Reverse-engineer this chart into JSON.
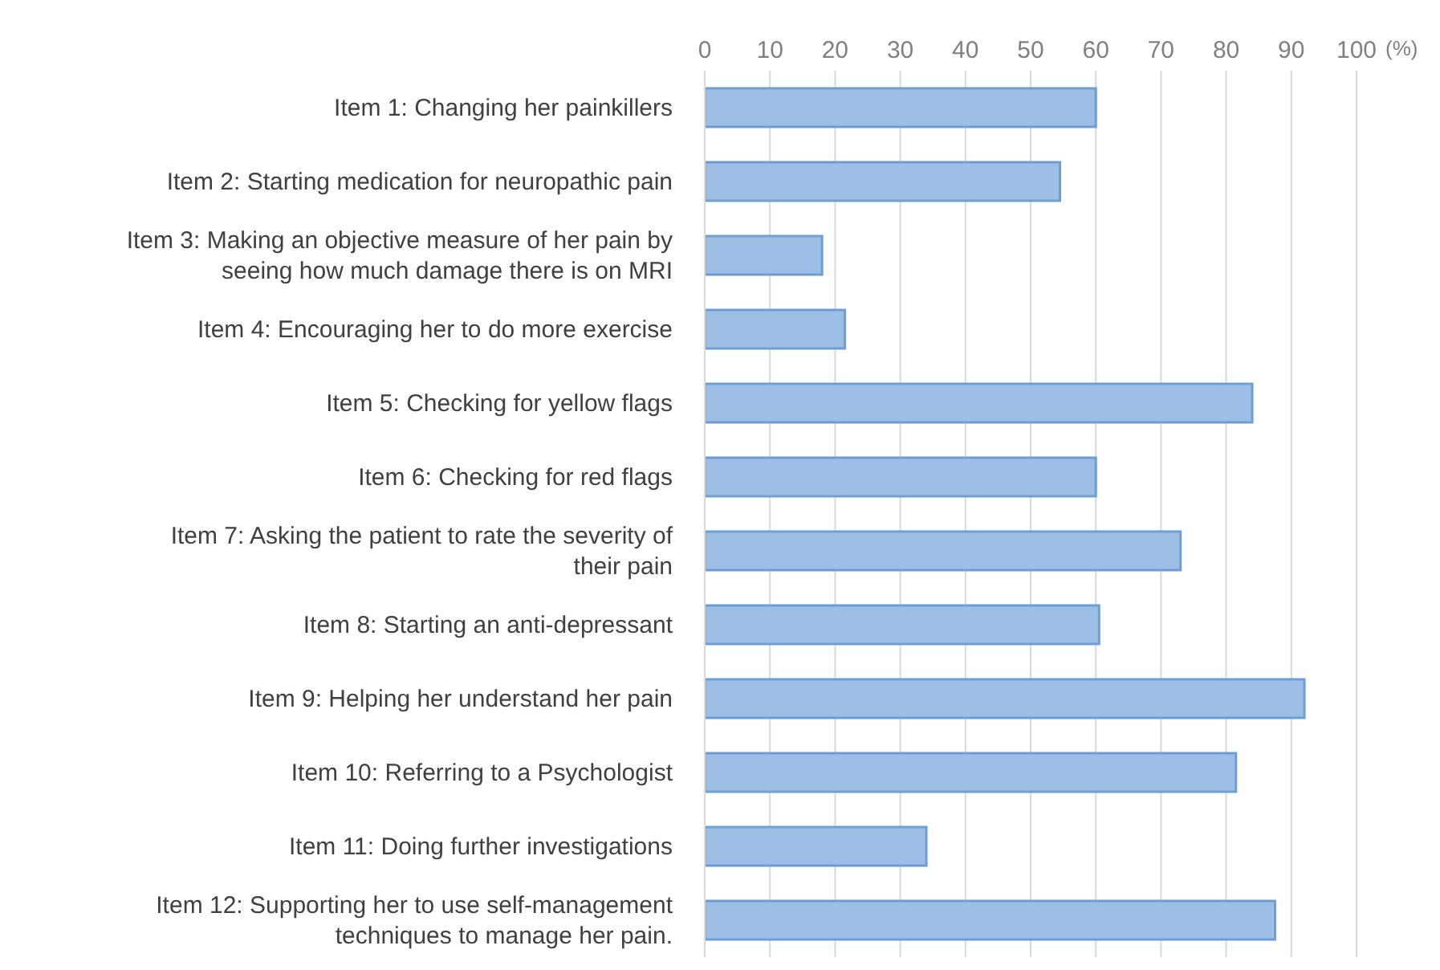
{
  "chart_data": {
    "type": "bar",
    "orientation": "horizontal",
    "xlabel": "(%)",
    "categories": [
      "Item 1: Changing her painkillers",
      "Item 2: Starting medication for neuropathic pain",
      "Item 3: Making an objective measure of her pain by seeing how much damage there is on MRI",
      "Item 4: Encouraging her to do more exercise",
      "Item 5: Checking for yellow flags",
      "Item 6: Checking for red flags",
      "Item 7: Asking the patient to rate the severity of their pain",
      "Item 8: Starting an anti-depressant",
      "Item 9: Helping her understand her pain",
      "Item 10: Referring to a Psychologist",
      "Item 11: Doing further investigations",
      "Item 12: Supporting her to use self-management techniques to manage her pain."
    ],
    "values": [
      60,
      54.5,
      18,
      21.5,
      84,
      60,
      73,
      60.5,
      92,
      81.5,
      34,
      87.5
    ],
    "color": "#9dbfe6",
    "xlim": [
      0,
      100
    ],
    "xticks": [
      0,
      10,
      20,
      30,
      40,
      50,
      60,
      70,
      80,
      90,
      100
    ],
    "grid": "x"
  }
}
